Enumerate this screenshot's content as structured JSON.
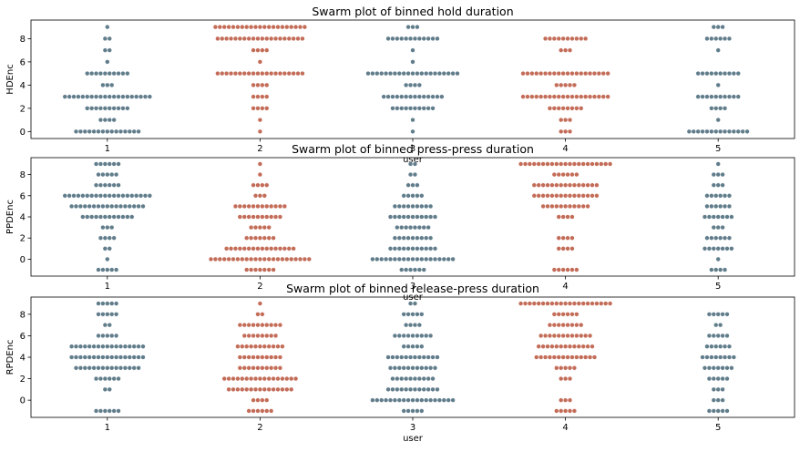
{
  "chart_data": [
    {
      "type": "swarm",
      "title": "Swarm plot of binned hold duration",
      "xlabel": "user",
      "ylabel": "HDEnc",
      "categories": [
        "1",
        "2",
        "3",
        "4",
        "5"
      ],
      "ylim": [
        -0.6,
        9.6
      ],
      "yticks": [
        0,
        2,
        4,
        6,
        8
      ],
      "groups": [
        {
          "x": "1",
          "color": "#617d8b",
          "counts": {
            "0": 15,
            "1": 4,
            "2": 10,
            "3": 20,
            "4": 3,
            "5": 10,
            "6": 1,
            "7": 2,
            "8": 2,
            "9": 1
          }
        },
        {
          "x": "2",
          "color": "#c36c58",
          "counts": {
            "0": 1,
            "1": 1,
            "2": 4,
            "3": 4,
            "4": 4,
            "5": 20,
            "6": 1,
            "7": 4,
            "8": 20,
            "9": 21
          }
        },
        {
          "x": "3",
          "color": "#617d8b",
          "counts": {
            "0": 1,
            "1": 1,
            "2": 10,
            "3": 14,
            "4": 4,
            "5": 21,
            "6": 1,
            "7": 1,
            "8": 12,
            "9": 3
          }
        },
        {
          "x": "4",
          "color": "#c36c58",
          "counts": {
            "0": 3,
            "1": 3,
            "2": 8,
            "3": 20,
            "4": 5,
            "5": 20,
            "7": 3,
            "8": 10
          }
        },
        {
          "x": "5",
          "color": "#617d8b",
          "counts": {
            "0": 14,
            "1": 1,
            "2": 4,
            "3": 10,
            "4": 1,
            "5": 10,
            "7": 1,
            "8": 6,
            "9": 3
          }
        }
      ]
    },
    {
      "type": "swarm",
      "title": "Swarm plot of binned press-press duration",
      "xlabel": "user",
      "ylabel": "PPDEnc",
      "categories": [
        "1",
        "2",
        "3",
        "4",
        "5"
      ],
      "ylim": [
        -1.6,
        9.6
      ],
      "yticks": [
        0,
        2,
        4,
        6,
        8
      ],
      "groups": [
        {
          "x": "1",
          "color": "#617d8b",
          "counts": {
            "-1": 5,
            "0": 1,
            "1": 2,
            "2": 4,
            "3": 3,
            "4": 12,
            "5": 17,
            "6": 20,
            "7": 6,
            "8": 5,
            "9": 6
          }
        },
        {
          "x": "2",
          "color": "#c36c58",
          "counts": {
            "-1": 7,
            "0": 23,
            "1": 16,
            "2": 7,
            "3": 5,
            "4": 10,
            "5": 12,
            "6": 3,
            "7": 4,
            "8": 1,
            "9": 1
          }
        },
        {
          "x": "3",
          "color": "#617d8b",
          "counts": {
            "-1": 6,
            "0": 19,
            "1": 11,
            "2": 9,
            "3": 8,
            "4": 11,
            "5": 9,
            "6": 5,
            "7": 3,
            "8": 2,
            "9": 2
          }
        },
        {
          "x": "4",
          "color": "#c36c58",
          "counts": {
            "-1": 6,
            "1": 4,
            "2": 4,
            "4": 4,
            "5": 11,
            "6": 15,
            "7": 15,
            "8": 6,
            "9": 21
          }
        },
        {
          "x": "5",
          "color": "#617d8b",
          "counts": {
            "-1": 4,
            "0": 1,
            "1": 7,
            "2": 6,
            "3": 3,
            "4": 7,
            "5": 6,
            "6": 6,
            "7": 3,
            "8": 3,
            "9": 1
          }
        }
      ]
    },
    {
      "type": "swarm",
      "title": "Swarm plot of binned release-press duration",
      "xlabel": "user",
      "ylabel": "RPDEnc",
      "categories": [
        "1",
        "2",
        "3",
        "4",
        "5"
      ],
      "ylim": [
        -1.6,
        9.6
      ],
      "yticks": [
        0,
        2,
        4,
        6,
        8
      ],
      "groups": [
        {
          "x": "1",
          "color": "#617d8b",
          "counts": {
            "-1": 6,
            "1": 2,
            "2": 6,
            "3": 15,
            "4": 17,
            "5": 17,
            "6": 5,
            "7": 2,
            "8": 5,
            "9": 5
          }
        },
        {
          "x": "2",
          "color": "#c36c58",
          "counts": {
            "-1": 6,
            "0": 4,
            "1": 15,
            "2": 17,
            "3": 10,
            "4": 10,
            "5": 11,
            "6": 8,
            "7": 10,
            "8": 2,
            "9": 1
          }
        },
        {
          "x": "3",
          "color": "#617d8b",
          "counts": {
            "-1": 5,
            "0": 19,
            "1": 12,
            "2": 10,
            "3": 11,
            "4": 12,
            "5": 5,
            "6": 9,
            "7": 4,
            "8": 5,
            "9": 2
          }
        },
        {
          "x": "4",
          "color": "#c36c58",
          "counts": {
            "-1": 5,
            "0": 3,
            "2": 3,
            "3": 5,
            "4": 14,
            "5": 13,
            "6": 12,
            "7": 8,
            "8": 6,
            "9": 21
          }
        },
        {
          "x": "5",
          "color": "#617d8b",
          "counts": {
            "-1": 5,
            "0": 3,
            "1": 3,
            "2": 5,
            "3": 7,
            "4": 8,
            "5": 6,
            "6": 5,
            "7": 2,
            "8": 5
          }
        }
      ]
    }
  ]
}
